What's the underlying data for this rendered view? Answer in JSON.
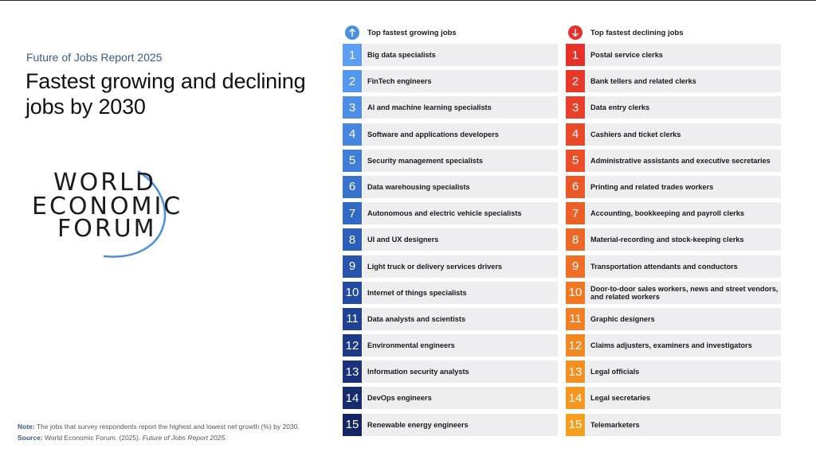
{
  "header": {
    "subtitle": "Future of Jobs Report 2025",
    "title": "Fastest growing and declining jobs by 2030"
  },
  "logo": {
    "line1": "WORLD",
    "line2": "ECONOMIC",
    "line3": "FORUM",
    "arc_color": "#4a8fe0"
  },
  "growing": {
    "heading": "Top fastest growing jobs",
    "icon": "arrow-up-icon",
    "icon_color": "#4a8fe0",
    "items": [
      {
        "rank": "1",
        "label": "Big data specialists",
        "color": "#5b9ef2"
      },
      {
        "rank": "2",
        "label": "FinTech engineers",
        "color": "#5497ec"
      },
      {
        "rank": "3",
        "label": "AI and machine learning specialists",
        "color": "#4d8fe6"
      },
      {
        "rank": "4",
        "label": "Software and applications developers",
        "color": "#4686df"
      },
      {
        "rank": "5",
        "label": "Security management specialists",
        "color": "#3f7dd7"
      },
      {
        "rank": "6",
        "label": "Data warehousing specialists",
        "color": "#3873ce"
      },
      {
        "rank": "7",
        "label": "Autonomous and electric vehicle specialists",
        "color": "#3269c4"
      },
      {
        "rank": "8",
        "label": "UI and UX designers",
        "color": "#2c5fb9"
      },
      {
        "rank": "9",
        "label": "Light truck or delivery services drivers",
        "color": "#2755ad"
      },
      {
        "rank": "10",
        "label": "Internet of things specialists",
        "color": "#234ba1"
      },
      {
        "rank": "11",
        "label": "Data analysts and scientists",
        "color": "#1f4294"
      },
      {
        "rank": "12",
        "label": "Environmental engineers",
        "color": "#1c3a88"
      },
      {
        "rank": "13",
        "label": "Information security analysts",
        "color": "#19327b"
      },
      {
        "rank": "14",
        "label": "DevOps engineers",
        "color": "#172b6f"
      },
      {
        "rank": "15",
        "label": "Renewable energy engineers",
        "color": "#152563"
      }
    ]
  },
  "declining": {
    "heading": "Top fastest declining jobs",
    "icon": "arrow-down-icon",
    "icon_color": "#e8302a",
    "items": [
      {
        "rank": "1",
        "label": "Postal service clerks",
        "color": "#e8302a"
      },
      {
        "rank": "2",
        "label": "Bank tellers and related clerks",
        "color": "#e9372a"
      },
      {
        "rank": "3",
        "label": "Data entry clerks",
        "color": "#ea3f29"
      },
      {
        "rank": "4",
        "label": "Cashiers and ticket clerks",
        "color": "#eb4729"
      },
      {
        "rank": "5",
        "label": "Administrative assistants and executive secretaries",
        "color": "#ec4f28"
      },
      {
        "rank": "6",
        "label": "Printing and related trades workers",
        "color": "#ed5727"
      },
      {
        "rank": "7",
        "label": "Accounting, bookkeeping and payroll clerks",
        "color": "#ee5f26"
      },
      {
        "rank": "8",
        "label": "Material-recording and stock-keeping clerks",
        "color": "#ef6725"
      },
      {
        "rank": "9",
        "label": "Transportation attendants and conductors",
        "color": "#f06f24"
      },
      {
        "rank": "10",
        "label": "Door-to-door sales workers, news and street vendors, and related workers",
        "color": "#f17723"
      },
      {
        "rank": "11",
        "label": "Graphic designers",
        "color": "#f27f22"
      },
      {
        "rank": "12",
        "label": "Claims adjusters, examiners and investigators",
        "color": "#f38721"
      },
      {
        "rank": "13",
        "label": "Legal officials",
        "color": "#f48f20"
      },
      {
        "rank": "14",
        "label": "Legal secretaries",
        "color": "#f5971f"
      },
      {
        "rank": "15",
        "label": "Telemarketers",
        "color": "#f69f1e"
      }
    ]
  },
  "footer": {
    "note_label": "Note:",
    "note_text": "The jobs that survey respondents report the highest and lowest net growth (%) by 2030.",
    "source_label": "Source:",
    "source_text": "World Economic Forum. (2025).",
    "source_italic": "Future of Jobs Report 2025."
  }
}
